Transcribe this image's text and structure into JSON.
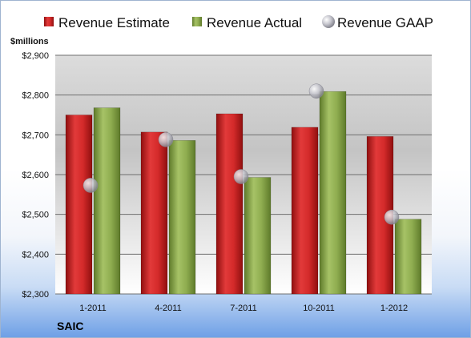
{
  "chart_data": {
    "type": "bar",
    "unit_label": "$millions",
    "categories": [
      "1-2011",
      "4-2011",
      "7-2011",
      "10-2011",
      "1-2012"
    ],
    "series": [
      {
        "name": "Revenue Estimate",
        "kind": "bar",
        "color": "#d42a2a",
        "values": [
          2750,
          2707,
          2753,
          2719,
          2696
        ]
      },
      {
        "name": "Revenue Actual",
        "kind": "bar",
        "color": "#8fad50",
        "values": [
          2768,
          2686,
          2593,
          2809,
          2488
        ]
      },
      {
        "name": "Revenue GAAP",
        "kind": "marker",
        "color": "#b8b8c0",
        "values": [
          2573,
          2688,
          2595,
          2810,
          2493
        ]
      }
    ],
    "y_ticks": [
      "$2,300",
      "$2,400",
      "$2,500",
      "$2,600",
      "$2,700",
      "$2,800",
      "$2,900"
    ],
    "ylim": [
      2300,
      2900
    ],
    "grid": true,
    "legend_position": "top"
  },
  "footer": {
    "company": "SAIC"
  }
}
